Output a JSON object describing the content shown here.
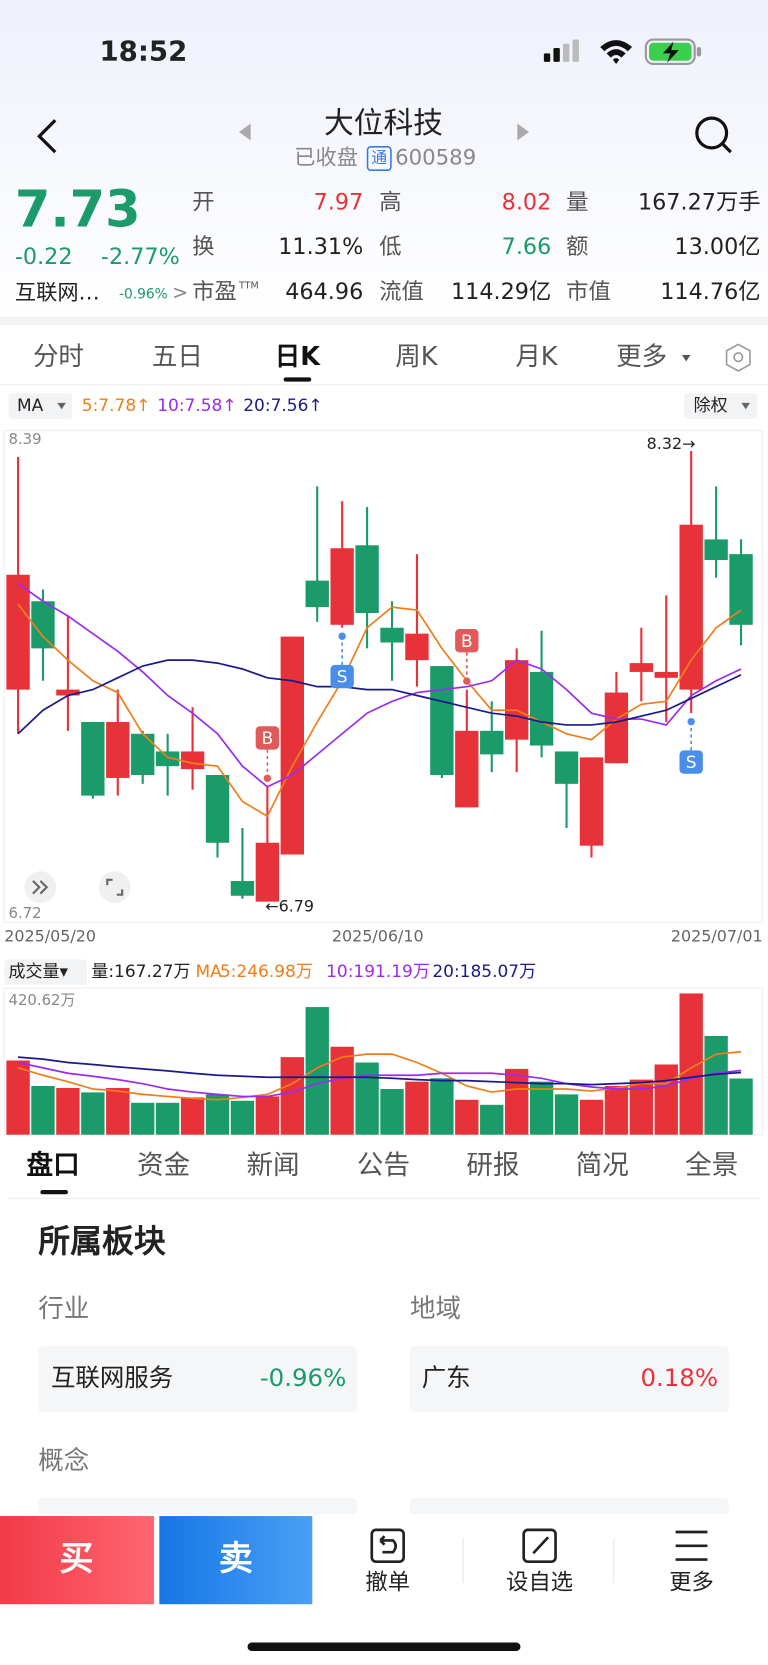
{
  "status_bar": {
    "time": "18:52"
  },
  "header": {
    "title": "大位科技",
    "status": "已收盘",
    "tong": "通",
    "code": "600589"
  },
  "quote": {
    "price": "7.73",
    "change": "-0.22",
    "change_pct": "-2.77%",
    "sector": "互联网…",
    "sector_pct": "-0.96%",
    "sector_arrow": ">",
    "fields": [
      {
        "label": "开",
        "value": "7.97"
      },
      {
        "label": "高",
        "value": "8.02"
      },
      {
        "label": "量",
        "value": "167.27万手"
      },
      {
        "label": "换",
        "value": "11.31%"
      },
      {
        "label": "低",
        "value": "7.66"
      },
      {
        "label": "额",
        "value": "13.00亿"
      },
      {
        "label": "市盈",
        "sup": "TTM",
        "value": "464.96"
      },
      {
        "label": "流值",
        "value": "114.29亿"
      },
      {
        "label": "市值",
        "value": "114.76亿"
      }
    ]
  },
  "period_tabs": [
    "分时",
    "五日",
    "日K",
    "周K",
    "月K",
    "更多"
  ],
  "ma_selector": "MA",
  "adjust_selector": "除权",
  "chart_data": [
    {
      "type": "candlestick",
      "up_color": "#e8323a",
      "down_color": "#1b9a6a",
      "categories": [
        "2025/05/20",
        null,
        null,
        null,
        null,
        null,
        null,
        null,
        null,
        null,
        null,
        null,
        null,
        null,
        "2025/06/10",
        null,
        null,
        null,
        null,
        null,
        null,
        null,
        null,
        null,
        null,
        null,
        null,
        null,
        null,
        "2025/07/01"
      ],
      "open": [
        7.51,
        7.81,
        7.49,
        7.4,
        7.21,
        7.36,
        7.3,
        7.24,
        7.22,
        6.86,
        6.79,
        6.95,
        7.88,
        7.73,
        8.0,
        7.72,
        7.61,
        7.59,
        7.11,
        7.37,
        7.34,
        7.57,
        7.3,
        6.98,
        7.26,
        7.57,
        7.55,
        7.51,
        8.02,
        7.97
      ],
      "high": [
        8.3,
        7.85,
        7.76,
        7.4,
        7.51,
        7.37,
        7.36,
        7.45,
        7.22,
        7.04,
        7.18,
        7.69,
        8.2,
        8.15,
        8.13,
        7.81,
        7.97,
        7.59,
        7.51,
        7.47,
        7.65,
        7.71,
        7.3,
        7.28,
        7.57,
        7.72,
        7.83,
        8.32,
        8.2,
        8.02
      ],
      "low": [
        7.36,
        7.54,
        7.37,
        7.14,
        7.15,
        7.19,
        7.15,
        7.17,
        6.94,
        6.8,
        6.79,
        6.95,
        7.74,
        7.72,
        7.65,
        7.54,
        7.52,
        7.21,
        7.11,
        7.23,
        7.23,
        7.28,
        7.04,
        6.94,
        7.26,
        7.47,
        7.4,
        7.43,
        7.89,
        7.66
      ],
      "close": [
        7.9,
        7.65,
        7.51,
        7.15,
        7.4,
        7.22,
        7.25,
        7.3,
        6.99,
        6.81,
        6.99,
        7.69,
        7.79,
        7.99,
        7.77,
        7.67,
        7.7,
        7.22,
        7.37,
        7.29,
        7.61,
        7.32,
        7.19,
        7.28,
        7.5,
        7.6,
        7.57,
        8.07,
        7.95,
        7.73
      ],
      "series": [
        {
          "name": "5:7.78↑",
          "color": "#f07d1a",
          "values": [
            7.8,
            7.69,
            7.61,
            7.54,
            7.5,
            7.36,
            7.28,
            7.26,
            7.25,
            7.13,
            7.08,
            7.25,
            7.4,
            7.54,
            7.72,
            7.79,
            7.78,
            7.65,
            7.54,
            7.44,
            7.44,
            7.4,
            7.36,
            7.34,
            7.41,
            7.46,
            7.47,
            7.61,
            7.72,
            7.78
          ]
        },
        {
          "name": "10:7.58↑",
          "color": "#9b2bef",
          "values": [
            7.87,
            7.81,
            7.76,
            7.7,
            7.64,
            7.57,
            7.49,
            7.43,
            7.36,
            7.25,
            7.18,
            7.22,
            7.29,
            7.36,
            7.43,
            7.47,
            7.5,
            7.51,
            7.52,
            7.54,
            7.61,
            7.58,
            7.51,
            7.43,
            7.41,
            7.41,
            7.39,
            7.49,
            7.54,
            7.58
          ]
        },
        {
          "name": "20:7.56↑",
          "color": "#1a1a8c",
          "values": [
            7.36,
            7.44,
            7.49,
            7.51,
            7.55,
            7.59,
            7.61,
            7.61,
            7.6,
            7.58,
            7.55,
            7.54,
            7.52,
            7.52,
            7.51,
            7.51,
            7.49,
            7.47,
            7.45,
            7.43,
            7.42,
            7.4,
            7.39,
            7.39,
            7.4,
            7.42,
            7.44,
            7.48,
            7.52,
            7.56
          ]
        }
      ],
      "ylim": [
        6.72,
        8.39
      ],
      "yticks": [
        8.39,
        6.72
      ],
      "max_label": {
        "value": 8.32,
        "label": "8.32→"
      },
      "min_label": {
        "value": 6.79,
        "label": "←6.79"
      },
      "markers": [
        {
          "label": "B",
          "index": 10
        },
        {
          "label": "S",
          "index": 13
        },
        {
          "label": "B",
          "index": 18
        },
        {
          "label": "S",
          "index": 27
        }
      ]
    },
    {
      "type": "bar",
      "title": "成交量▾",
      "current": "量:167.27万",
      "ma_label": "MA",
      "values": [
        221,
        145,
        139,
        126,
        139,
        95,
        95,
        111,
        120,
        101,
        114,
        231,
        380,
        262,
        215,
        136,
        158,
        168,
        104,
        89,
        196,
        158,
        120,
        104,
        145,
        164,
        209,
        420.62,
        294,
        167.27
      ],
      "series": [
        {
          "name": "5:246.98万",
          "color": "#f07d1a",
          "values": [
            199,
            177,
            158,
            136,
            130,
            120,
            114,
            108,
            104,
            111,
            120,
            152,
            199,
            231,
            240,
            240,
            215,
            183,
            145,
            127,
            136,
            136,
            136,
            130,
            139,
            152,
            152,
            199,
            240,
            246.98
          ]
        },
        {
          "name": "10:191.19万",
          "color": "#9b2bef",
          "values": [
            215,
            199,
            183,
            174,
            164,
            152,
            136,
            127,
            120,
            114,
            114,
            127,
            152,
            168,
            177,
            177,
            177,
            183,
            183,
            183,
            177,
            168,
            152,
            142,
            136,
            136,
            145,
            168,
            183,
            191.19
          ]
        },
        {
          "name": "20:185.07万",
          "color": "#1a1a8c",
          "values": [
            231,
            225,
            215,
            209,
            202,
            196,
            190,
            183,
            177,
            174,
            171,
            171,
            171,
            171,
            171,
            168,
            164,
            161,
            161,
            158,
            155,
            152,
            152,
            149,
            152,
            155,
            161,
            171,
            180,
            185.07
          ]
        }
      ],
      "ylim": [
        0,
        420.62
      ],
      "yticks": [
        {
          "value": 420.62,
          "label": "420.62万"
        }
      ]
    }
  ],
  "info_tabs": [
    "盘口",
    "资金",
    "新闻",
    "公告",
    "研报",
    "简况",
    "全景"
  ],
  "sector_section": {
    "title": "所属板块",
    "industry_label": "行业",
    "region_label": "地域",
    "industry": {
      "name": "互联网服务",
      "pct": "-0.96%"
    },
    "region": {
      "name": "广东",
      "pct": "0.18%"
    },
    "concept_label": "概念"
  },
  "bottom_bar": {
    "buy": "买",
    "sell": "卖",
    "cancel": "撤单",
    "watch": "设自选",
    "more": "更多"
  }
}
